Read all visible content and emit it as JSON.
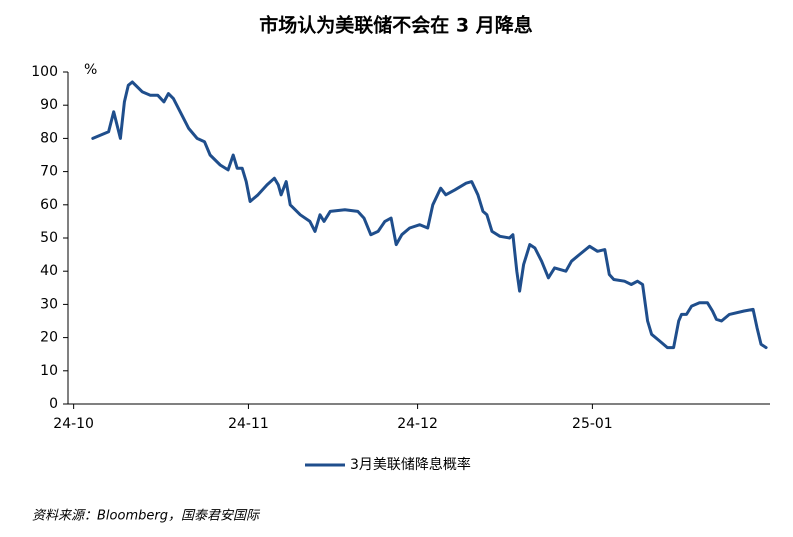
{
  "chart_data": {
    "type": "line",
    "title": "市场认为美联储不会在 3 月降息",
    "y_unit": "%",
    "source": "资料来源：Bloomberg，国泰君安国际",
    "x": [
      3.4,
      6.2,
      7.1,
      8.3,
      9.0,
      9.7,
      10.4,
      12.2,
      13.6,
      14.9,
      16.0,
      16.8,
      17.7,
      18.9,
      20.4,
      21.9,
      23.2,
      24.2,
      26.0,
      27.4,
      28.3,
      29.0,
      29.9,
      30.6,
      31.3,
      32.7,
      34.3,
      35.6,
      36.3,
      36.8,
      37.7,
      38.4,
      40.2,
      41.9,
      42.8,
      43.7,
      44.4,
      45.5,
      48.1,
      50.4,
      51.5,
      52.7,
      54.0,
      55.2,
      56.3,
      57.2,
      58.2,
      59.6,
      61.4,
      62.8,
      63.7,
      65.1,
      66.0,
      67.6,
      69.6,
      70.6,
      71.7,
      72.6,
      73.3,
      74.2,
      75.6,
      77.3,
      77.9,
      78.6,
      79.1,
      79.8,
      80.9,
      81.8,
      83.0,
      84.2,
      85.3,
      87.3,
      88.3,
      89.7,
      91.5,
      92.9,
      94.2,
      95.0,
      95.8,
      97.7,
      98.9,
      100.0,
      100.9,
      101.8,
      102.5,
      103.9,
      105.3,
      106.4,
      107.3,
      107.8,
      108.7,
      109.6,
      111.0,
      112.4,
      113.3,
      114.0,
      114.9,
      116.3,
      118.9,
      120.5,
      121.2,
      121.9,
      122.8
    ],
    "series": [
      {
        "name": "3月美联储降息概率",
        "color": "#1f4e8c",
        "values": [
          80,
          82,
          88,
          80,
          91,
          96,
          97,
          94,
          93,
          93,
          91,
          93.5,
          92,
          88,
          83,
          80,
          79,
          75,
          72,
          70.5,
          75,
          71,
          71,
          67,
          61,
          63,
          66,
          68,
          66,
          63,
          67,
          60,
          57,
          55,
          52,
          57,
          55,
          58,
          58.5,
          58,
          56,
          51,
          52,
          55,
          56,
          48,
          51,
          53,
          54,
          53,
          60,
          65,
          63,
          64.5,
          66.5,
          67,
          63,
          58,
          57,
          52,
          50.5,
          50,
          51,
          40,
          34,
          42,
          48,
          47,
          43,
          38,
          41,
          40,
          43,
          45,
          47.5,
          46,
          46.5,
          39,
          37.5,
          37,
          36,
          37,
          36,
          25,
          21,
          19,
          17,
          17,
          25,
          27,
          27,
          29.5,
          30.5,
          30.5,
          28,
          25.5,
          25,
          27,
          28,
          28.5,
          23,
          18,
          17
        ]
      }
    ],
    "xlim": [
      -1,
      123.5
    ],
    "xticks": [
      {
        "value": 0,
        "label": "24-10"
      },
      {
        "value": 31,
        "label": "24-11"
      },
      {
        "value": 61,
        "label": "24-12"
      },
      {
        "value": 92,
        "label": "25-01"
      }
    ],
    "ylim": [
      0,
      100
    ],
    "yticks": [
      0,
      10,
      20,
      30,
      40,
      50,
      60,
      70,
      80,
      90,
      100
    ],
    "grid": false
  }
}
